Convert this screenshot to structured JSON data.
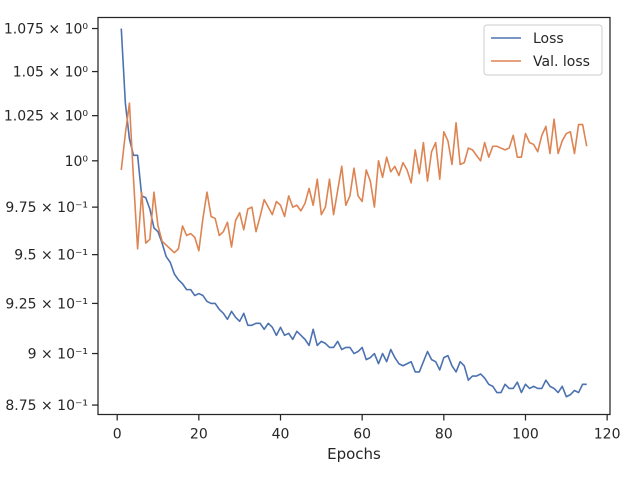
{
  "chart_data": {
    "type": "line",
    "xlabel": "Epochs",
    "ylabel": "",
    "xlim": [
      -4.7,
      120.7
    ],
    "ylim": [
      0.8705,
      1.0815
    ],
    "y_scale": "log",
    "x_ticks": [
      0,
      20,
      40,
      60,
      80,
      100,
      120
    ],
    "x_tick_labels": [
      "0",
      "20",
      "40",
      "60",
      "80",
      "100",
      "120"
    ],
    "y_ticks": [
      0.875,
      0.9,
      0.925,
      0.95,
      0.975,
      1.0,
      1.025,
      1.05,
      1.075
    ],
    "y_tick_labels": [
      "8.75 × 10⁻¹",
      "9 × 10⁻¹",
      "9.25 × 10⁻¹",
      "9.5 × 10⁻¹",
      "9.75 × 10⁻¹",
      "10⁰",
      "1.025 × 10⁰",
      "1.05 × 10⁰",
      "1.075 × 10⁰"
    ],
    "legend_position": "top-right",
    "grid": false,
    "series": [
      {
        "name": "Loss",
        "color": "#4c72b0",
        "x": [
          1,
          2,
          3,
          4,
          5,
          6,
          7,
          8,
          9,
          10,
          11,
          12,
          13,
          14,
          15,
          16,
          17,
          18,
          19,
          20,
          21,
          22,
          23,
          24,
          25,
          26,
          27,
          28,
          29,
          30,
          31,
          32,
          33,
          34,
          35,
          36,
          37,
          38,
          39,
          40,
          41,
          42,
          43,
          44,
          45,
          46,
          47,
          48,
          49,
          50,
          51,
          52,
          53,
          54,
          55,
          56,
          57,
          58,
          59,
          60,
          61,
          62,
          63,
          64,
          65,
          66,
          67,
          68,
          69,
          70,
          71,
          72,
          73,
          74,
          75,
          76,
          77,
          78,
          79,
          80,
          81,
          82,
          83,
          84,
          85,
          86,
          87,
          88,
          89,
          90,
          91,
          92,
          93,
          94,
          95,
          96,
          97,
          98,
          99,
          100,
          101,
          102,
          103,
          104,
          105,
          106,
          107,
          108,
          109,
          110,
          111,
          112,
          113,
          114,
          115
        ],
        "values": [
          1.075,
          1.032,
          1.012,
          1.003,
          1.003,
          0.981,
          0.98,
          0.974,
          0.964,
          0.962,
          0.956,
          0.949,
          0.946,
          0.94,
          0.937,
          0.935,
          0.932,
          0.932,
          0.929,
          0.93,
          0.929,
          0.926,
          0.925,
          0.925,
          0.922,
          0.92,
          0.917,
          0.921,
          0.918,
          0.916,
          0.92,
          0.914,
          0.914,
          0.915,
          0.915,
          0.912,
          0.915,
          0.913,
          0.909,
          0.913,
          0.909,
          0.91,
          0.907,
          0.911,
          0.909,
          0.907,
          0.904,
          0.912,
          0.904,
          0.906,
          0.905,
          0.903,
          0.903,
          0.906,
          0.902,
          0.903,
          0.903,
          0.9,
          0.901,
          0.903,
          0.897,
          0.898,
          0.9,
          0.895,
          0.9,
          0.896,
          0.902,
          0.898,
          0.895,
          0.894,
          0.895,
          0.896,
          0.891,
          0.891,
          0.896,
          0.901,
          0.897,
          0.896,
          0.892,
          0.898,
          0.899,
          0.894,
          0.891,
          0.896,
          0.894,
          0.887,
          0.889,
          0.889,
          0.89,
          0.888,
          0.885,
          0.884,
          0.881,
          0.881,
          0.885,
          0.883,
          0.883,
          0.886,
          0.881,
          0.885,
          0.883,
          0.884,
          0.883,
          0.883,
          0.887,
          0.884,
          0.883,
          0.881,
          0.884,
          0.879,
          0.88,
          0.882,
          0.881,
          0.885,
          0.885
        ]
      },
      {
        "name": "Val. loss",
        "color": "#dd8452",
        "x": [
          1,
          2,
          3,
          4,
          5,
          6,
          7,
          8,
          9,
          10,
          11,
          12,
          13,
          14,
          15,
          16,
          17,
          18,
          19,
          20,
          21,
          22,
          23,
          24,
          25,
          26,
          27,
          28,
          29,
          30,
          31,
          32,
          33,
          34,
          35,
          36,
          37,
          38,
          39,
          40,
          41,
          42,
          43,
          44,
          45,
          46,
          47,
          48,
          49,
          50,
          51,
          52,
          53,
          54,
          55,
          56,
          57,
          58,
          59,
          60,
          61,
          62,
          63,
          64,
          65,
          66,
          67,
          68,
          69,
          70,
          71,
          72,
          73,
          74,
          75,
          76,
          77,
          78,
          79,
          80,
          81,
          82,
          83,
          84,
          85,
          86,
          87,
          88,
          89,
          90,
          91,
          92,
          93,
          94,
          95,
          96,
          97,
          98,
          99,
          100,
          101,
          102,
          103,
          104,
          105,
          106,
          107,
          108,
          109,
          110,
          111,
          112,
          113,
          114,
          115
        ],
        "values": [
          0.995,
          1.015,
          1.032,
          0.99,
          0.953,
          0.983,
          0.956,
          0.958,
          0.983,
          0.965,
          0.957,
          0.955,
          0.953,
          0.951,
          0.953,
          0.965,
          0.96,
          0.961,
          0.959,
          0.952,
          0.969,
          0.983,
          0.97,
          0.969,
          0.96,
          0.962,
          0.967,
          0.954,
          0.968,
          0.972,
          0.963,
          0.974,
          0.975,
          0.962,
          0.97,
          0.979,
          0.975,
          0.971,
          0.978,
          0.976,
          0.97,
          0.981,
          0.975,
          0.976,
          0.973,
          0.977,
          0.985,
          0.976,
          0.99,
          0.971,
          0.975,
          0.99,
          0.971,
          0.984,
          0.997,
          0.976,
          0.981,
          0.996,
          0.981,
          0.978,
          0.995,
          0.989,
          0.975,
          1.0,
          0.991,
          1.002,
          0.994,
          0.997,
          0.992,
          0.999,
          0.995,
          0.988,
          1.006,
          0.993,
          1.01,
          0.989,
          1.005,
          1.01,
          0.99,
          1.016,
          1.011,
          0.998,
          1.021,
          0.998,
          0.999,
          1.007,
          1.006,
          1.003,
          1.0,
          1.01,
          1.002,
          1.008,
          1.008,
          1.007,
          1.006,
          1.007,
          1.014,
          1.002,
          1.002,
          1.015,
          1.01,
          1.009,
          1.005,
          1.014,
          1.019,
          1.004,
          1.023,
          1.004,
          1.011,
          1.015,
          1.016,
          1.004,
          1.02,
          1.02,
          1.008
        ]
      }
    ]
  }
}
